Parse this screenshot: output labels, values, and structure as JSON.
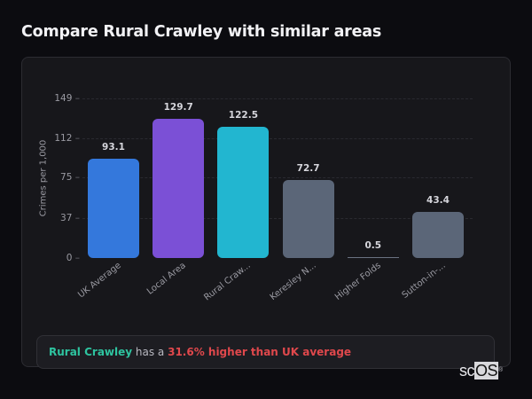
{
  "header": {
    "title": "Compare Rural Crawley with similar areas"
  },
  "chart_data": {
    "type": "bar",
    "title": "Compare Rural Crawley with similar areas",
    "xlabel": "",
    "ylabel": "Crimes per 1,000",
    "ylim": [
      0,
      149
    ],
    "yticks": [
      0,
      37,
      75,
      112,
      149
    ],
    "grid": true,
    "categories": [
      "UK Average",
      "Local Area",
      "Rural Craw...",
      "Keresley N...",
      "Higher Folds",
      "Sutton-in-..."
    ],
    "values": [
      93.1,
      129.7,
      122.5,
      72.7,
      0.5,
      43.4
    ],
    "value_labels": [
      "93.1",
      "129.7",
      "122.5",
      "72.7",
      "0.5",
      "43.4"
    ],
    "colors": [
      "#3478dc",
      "#7b50d6",
      "#22b6d0",
      "#5b6678",
      "#5b6678",
      "#5b6678"
    ]
  },
  "note": {
    "area_name": "Rural Crawley",
    "connector": " has a ",
    "difference": "31.6% higher than UK average"
  },
  "logo": {
    "prefix": "sc",
    "highlight": "OS",
    "mark": "®"
  }
}
